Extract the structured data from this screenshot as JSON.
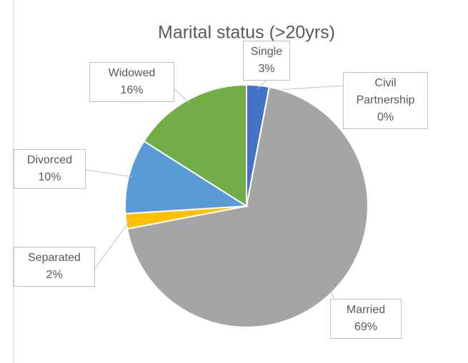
{
  "chart_data": {
    "type": "pie",
    "title": "Marital status (>20yrs)",
    "categories": [
      "Single",
      "Civil Partnership",
      "Married",
      "Separated",
      "Divorced",
      "Widowed"
    ],
    "values": [
      3,
      0,
      69,
      2,
      10,
      16
    ],
    "value_labels": [
      "3%",
      "0%",
      "69%",
      "2%",
      "10%",
      "16%"
    ],
    "colors": [
      "#4472c4",
      "#ed7d31",
      "#a5a5a5",
      "#ffc000",
      "#5b9bd5",
      "#70ad47"
    ]
  }
}
